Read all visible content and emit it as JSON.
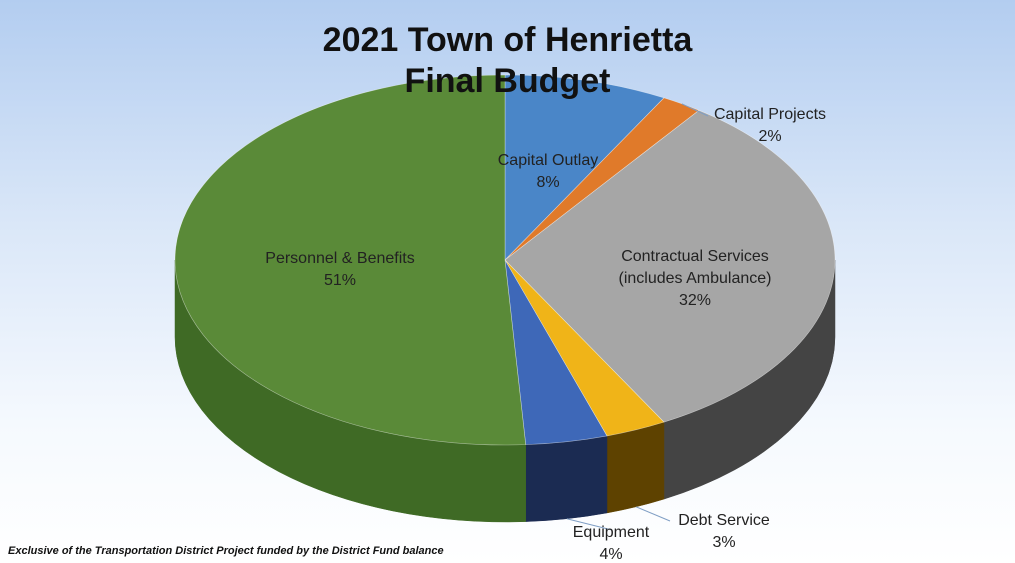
{
  "chart_data": {
    "type": "pie",
    "title": "2021 Town of Henrietta",
    "subtitle": "Final Budget",
    "slices": [
      {
        "label": "Capital Outlay",
        "percent_label": "8%",
        "value": 8,
        "color": "#4a86c8",
        "side_color": "#1d3458"
      },
      {
        "label": "Capital Projects",
        "percent_label": "2%",
        "value": 2,
        "color": "#e07a2a",
        "side_color": "#6b3510"
      },
      {
        "label": "Contractual Services (includes Ambulance)",
        "label_lines": [
          "Contractual Services",
          "(includes Ambulance)"
        ],
        "percent_label": "32%",
        "value": 32,
        "color": "#a6a6a6",
        "side_color": "#444444"
      },
      {
        "label": "Debt Service",
        "percent_label": "3%",
        "value": 3,
        "color": "#f0b418",
        "side_color": "#5e4200"
      },
      {
        "label": "Equipment",
        "percent_label": "4%",
        "value": 4,
        "color": "#3e68b8",
        "side_color": "#1b2b52"
      },
      {
        "label": "Personnel & Benefits",
        "percent_label": "51%",
        "value": 51,
        "color": "#5a8a38",
        "side_color": "#3f6a25"
      }
    ],
    "legend": "none",
    "footnote": "Exclusive of the Transportation District Project funded by the District Fund balance"
  }
}
